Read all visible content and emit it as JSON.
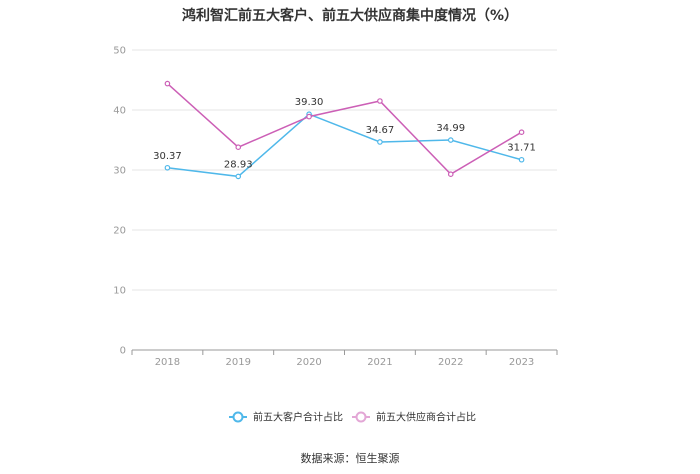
{
  "chart_data": {
    "type": "line",
    "title": "鸿利智汇前五大客户、前五大供应商集中度情况（%）",
    "xlabel": "",
    "ylabel": "",
    "categories": [
      "2018",
      "2019",
      "2020",
      "2021",
      "2022",
      "2023"
    ],
    "ylim": [
      0,
      50
    ],
    "yticks": [
      "0",
      "10",
      "20",
      "30",
      "40",
      "50"
    ],
    "grid": true,
    "legend_position": "bottom",
    "series": [
      {
        "name": "前五大客户合计占比",
        "values": [
          30.37,
          28.93,
          39.3,
          34.67,
          34.99,
          31.71
        ],
        "labels": [
          "30.37",
          "28.93",
          "39.30",
          "34.67",
          "34.99",
          "31.71"
        ],
        "color": "#4fb8ea"
      },
      {
        "name": "前五大供应商合计占比",
        "values": [
          44.4,
          33.8,
          38.9,
          41.5,
          29.3,
          36.3
        ],
        "color": "#cc5fb6"
      }
    ],
    "source": "数据来源：恒生聚源"
  }
}
